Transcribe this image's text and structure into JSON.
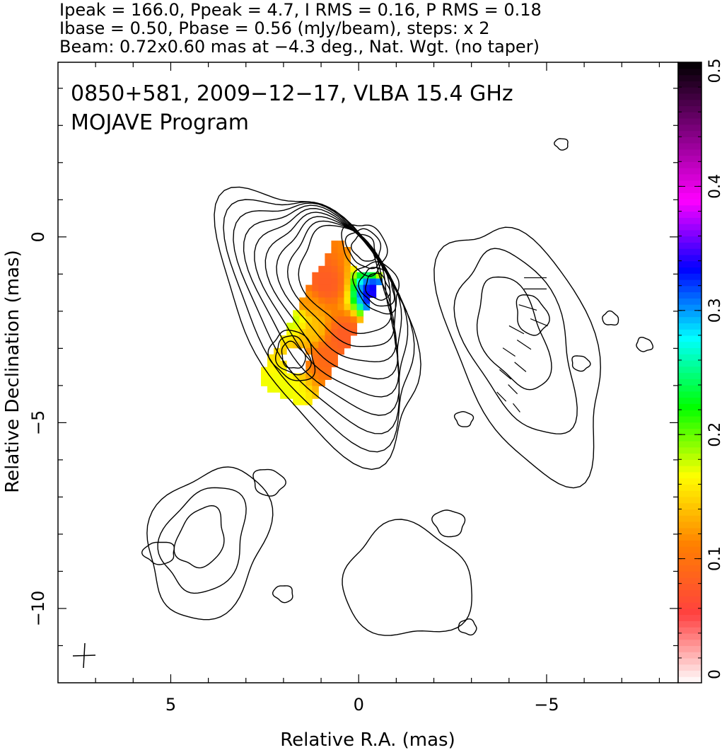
{
  "header": {
    "line1": "Ipeak = 166.0, Ppeak = 4.7, I RMS = 0.16, P RMS = 0.18",
    "line2": "Ibase = 0.50, Pbase = 0.56 (mJy/beam), steps: x 2",
    "line3": "Beam: 0.72x0.60 mas at −4.3 deg., Nat. Wgt. (no taper)"
  },
  "chart_data": {
    "type": "heatmap",
    "title": "0850+581, 2009−12−17, VLBA 15.4 GHz",
    "subtitle": "MOJAVE Program",
    "xlabel": "Relative R.A. (mas)",
    "ylabel": "Relative Declination (mas)",
    "xlim": [
      8.0,
      -8.5
    ],
    "ylim": [
      -12.0,
      4.7
    ],
    "x_ticks": [
      5,
      0,
      -5
    ],
    "x_tick_labels": [
      "5",
      "0",
      "−5"
    ],
    "y_ticks": [
      0,
      -5,
      -10
    ],
    "y_tick_labels": [
      "0",
      "−5",
      "−10"
    ],
    "colorbar": {
      "min": 0,
      "max": 0.5,
      "ticks": [
        0,
        0.1,
        0.2,
        0.3,
        0.4,
        0.5
      ],
      "tick_labels": [
        "0",
        "0.1",
        "0.2",
        "0.3",
        "0.4",
        "0.5"
      ],
      "colors": [
        "#ffffff",
        "#ff4040",
        "#ff7f00",
        "#ffff00",
        "#00ff00",
        "#00ffff",
        "#0000ff",
        "#ff00ff",
        "#800080",
        "#000000"
      ]
    },
    "contours": {
      "core_centers": [
        [
          -0.15,
          -0.3
        ],
        [
          -0.5,
          -1.35
        ],
        [
          1.75,
          -3.2
        ]
      ],
      "core_levels": [
        [
          [
            -0.25,
            -0.1
          ],
          [
            -0.1,
            -0.55
          ],
          [
            0.1,
            -0.5
          ]
        ],
        [
          [
            -0.85,
            -1.3
          ],
          [
            0.1,
            -1.4
          ],
          [
            -0.3,
            -1.7
          ]
        ],
        [
          [
            1.7,
            -3.2
          ],
          [
            2.0,
            -3.6
          ],
          [
            1.5,
            -3.5
          ]
        ]
      ],
      "southwest_blob": {
        "center": [
          -4.4,
          -3.0
        ],
        "levels": 3
      },
      "southeast_cluster": {
        "center": [
          4.0,
          -8.2
        ],
        "levels": 3
      },
      "south_blob": {
        "center": [
          -1.3,
          -9.3
        ],
        "levels": 1
      }
    },
    "polarization": [
      {
        "x": -1.2,
        "y": -0.4,
        "v": 0.04
      },
      {
        "x": -0.7,
        "y": -0.6,
        "v": 0.07
      },
      {
        "x": 1.0,
        "y": -1.2,
        "v": 0.08
      },
      {
        "x": 1.5,
        "y": -1.7,
        "v": 0.12
      },
      {
        "x": 1.8,
        "y": -2.1,
        "v": 0.18
      },
      {
        "x": 1.3,
        "y": -2.5,
        "v": 0.14
      },
      {
        "x": 0.5,
        "y": -2.6,
        "v": 0.08
      },
      {
        "x": 0.9,
        "y": -3.0,
        "v": 0.09
      },
      {
        "x": 2.2,
        "y": -4.1,
        "v": 0.17
      },
      {
        "x": -0.4,
        "y": -1.4,
        "v": 0.34
      }
    ],
    "beam": {
      "major": 0.72,
      "minor": 0.6,
      "pa_deg": -4.3
    }
  }
}
